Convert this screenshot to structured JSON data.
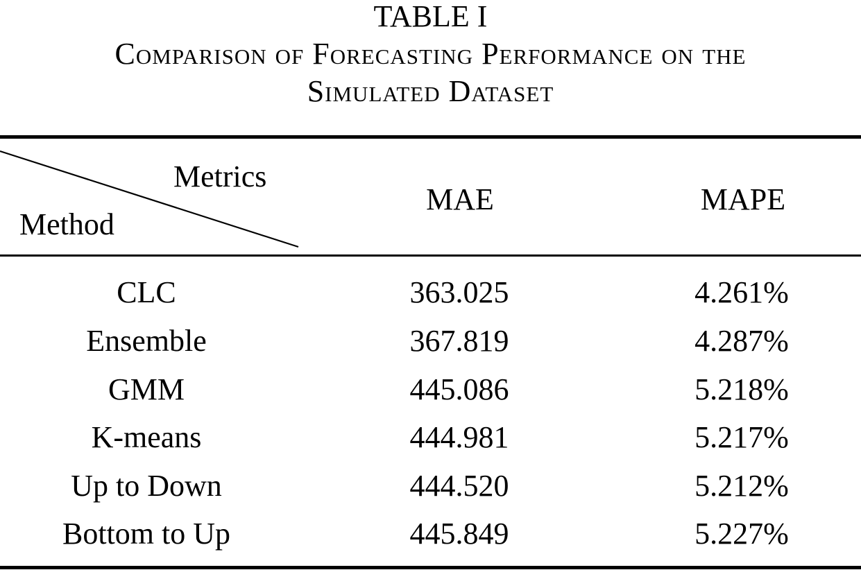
{
  "caption": {
    "label": "TABLE I",
    "line1": "Comparison of Forecasting Performance on the",
    "line2": "Simulated Dataset"
  },
  "header": {
    "metrics": "Metrics",
    "method": "Method",
    "columns": [
      "MAE",
      "MAPE"
    ]
  },
  "rows": [
    {
      "method": "CLC",
      "mae": "363.025",
      "mape": "4.261%"
    },
    {
      "method": "Ensemble",
      "mae": "367.819",
      "mape": "4.287%"
    },
    {
      "method": "GMM",
      "mae": "445.086",
      "mape": "5.218%"
    },
    {
      "method": "K-means",
      "mae": "444.981",
      "mape": "5.217%"
    },
    {
      "method": "Up to Down",
      "mae": "444.520",
      "mape": "5.212%"
    },
    {
      "method": "Bottom to Up",
      "mae": "445.849",
      "mape": "5.227%"
    }
  ]
}
